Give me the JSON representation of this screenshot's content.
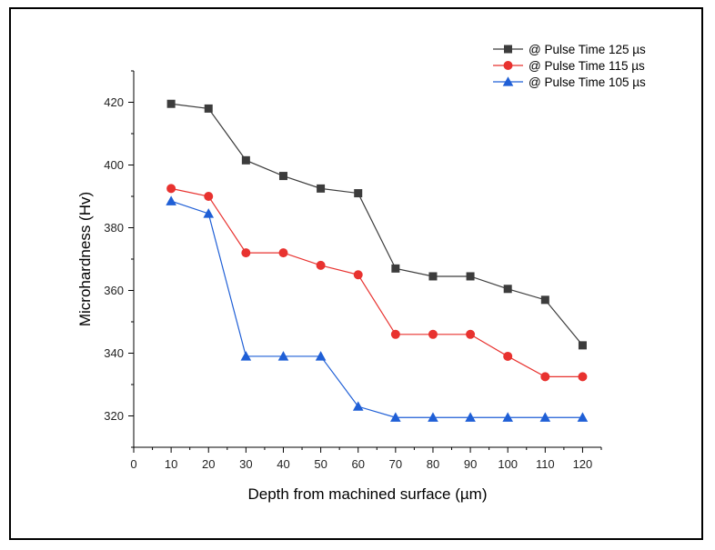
{
  "chart_data": {
    "type": "line",
    "title": "",
    "xlabel": "Depth from machined surface (µm)",
    "ylabel": "Microhardness (Hv)",
    "xlim": [
      0,
      125
    ],
    "ylim": [
      310,
      430
    ],
    "x_ticks": [
      0,
      10,
      20,
      30,
      40,
      50,
      60,
      70,
      80,
      90,
      100,
      110,
      120
    ],
    "y_ticks": [
      320,
      340,
      360,
      380,
      400,
      420
    ],
    "x": [
      10,
      20,
      30,
      40,
      50,
      60,
      70,
      80,
      90,
      100,
      110,
      120
    ],
    "legend_position": "top-right",
    "grid": false,
    "series": [
      {
        "name": "@ Pulse Time 125 µs",
        "color": "#3c3c3c",
        "marker": "square",
        "values": [
          419.5,
          418,
          401.5,
          396.5,
          392.5,
          391,
          367,
          364.5,
          364.5,
          360.5,
          357,
          342.5
        ]
      },
      {
        "name": "@ Pulse Time 115 µs",
        "color": "#e8322f",
        "marker": "circle",
        "values": [
          392.5,
          390,
          372,
          372,
          368,
          365,
          346,
          346,
          346,
          339,
          332.5,
          332.5
        ]
      },
      {
        "name": "@ Pulse Time 105 µs",
        "color": "#1f5fd6",
        "marker": "triangle",
        "values": [
          388.5,
          384.5,
          339,
          339,
          339,
          323,
          319.5,
          319.5,
          319.5,
          319.5,
          319.5,
          319.5
        ]
      }
    ]
  }
}
